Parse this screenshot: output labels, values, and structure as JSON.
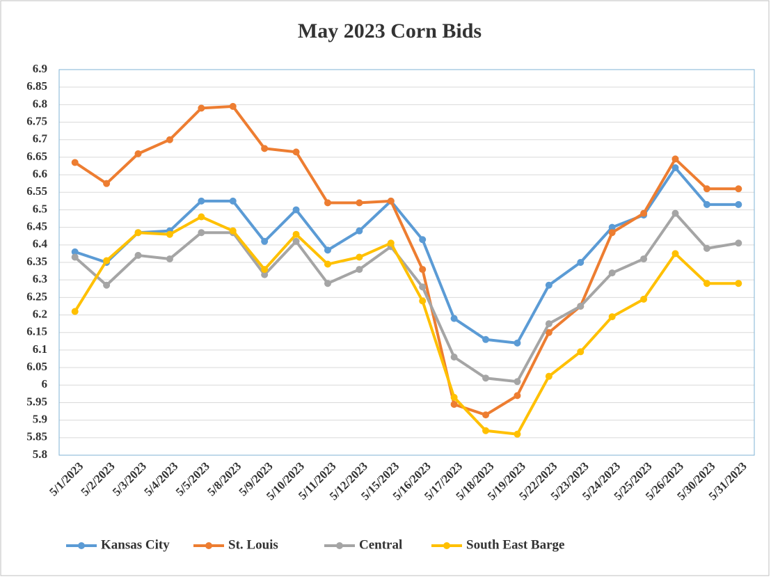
{
  "chart_data": {
    "type": "line",
    "title": "May 2023 Corn Bids",
    "categories": [
      "5/1/2023",
      "5/2/2023",
      "5/3/2023",
      "5/4/2023",
      "5/5/2023",
      "5/8/2023",
      "5/9/2023",
      "5/10/2023",
      "5/11/2023",
      "5/12/2023",
      "5/15/2023",
      "5/16/2023",
      "5/17/2023",
      "5/18/2023",
      "5/19/2023",
      "5/22/2023",
      "5/23/2023",
      "5/24/2023",
      "5/25/2023",
      "5/26/2023",
      "5/30/2023",
      "5/31/2023"
    ],
    "series": [
      {
        "name": "Kansas City",
        "color": "#5b9bd5",
        "values": [
          6.38,
          6.35,
          6.435,
          6.44,
          6.525,
          6.525,
          6.41,
          6.5,
          6.385,
          6.44,
          6.525,
          6.415,
          6.19,
          6.13,
          6.12,
          6.285,
          6.35,
          6.45,
          6.485,
          6.62,
          6.515,
          6.515
        ]
      },
      {
        "name": "St. Louis",
        "color": "#ed7d31",
        "values": [
          6.635,
          6.575,
          6.66,
          6.7,
          6.79,
          6.795,
          6.675,
          6.665,
          6.52,
          6.52,
          6.525,
          6.33,
          5.945,
          5.915,
          5.97,
          6.15,
          6.225,
          6.435,
          6.49,
          6.645,
          6.56,
          6.56
        ]
      },
      {
        "name": "Central",
        "color": "#a5a5a5",
        "values": [
          6.365,
          6.285,
          6.37,
          6.36,
          6.435,
          6.435,
          6.315,
          6.41,
          6.29,
          6.33,
          6.395,
          6.28,
          6.08,
          6.02,
          6.01,
          6.175,
          6.225,
          6.32,
          6.36,
          6.49,
          6.39,
          6.405
        ]
      },
      {
        "name": "South East Barge",
        "color": "#ffc000",
        "values": [
          6.21,
          6.355,
          6.435,
          6.43,
          6.48,
          6.44,
          6.33,
          6.43,
          6.345,
          6.365,
          6.405,
          6.24,
          5.965,
          5.87,
          5.86,
          6.025,
          6.095,
          6.195,
          6.245,
          6.375,
          6.29,
          6.29
        ]
      }
    ],
    "ylim": [
      5.8,
      6.9
    ],
    "yticks": [
      5.8,
      5.85,
      5.9,
      5.95,
      6,
      6.05,
      6.1,
      6.15,
      6.2,
      6.25,
      6.3,
      6.35,
      6.4,
      6.45,
      6.5,
      6.55,
      6.6,
      6.65,
      6.7,
      6.75,
      6.8,
      6.85,
      6.9
    ],
    "grid": true,
    "legend": "bottom"
  }
}
